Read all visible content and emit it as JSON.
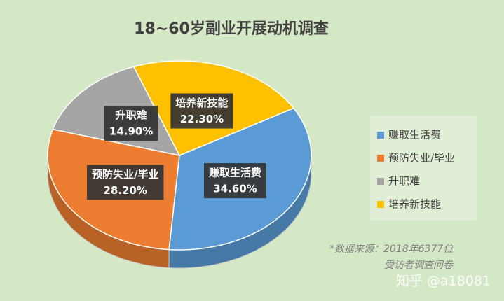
{
  "chart_data": {
    "type": "pie3d",
    "title": "18~60岁副业开展动机调查",
    "categories": [
      "赚取生活费",
      "预防失业/毕业",
      "升职难",
      "培养新技能"
    ],
    "series": [
      {
        "name": "占比",
        "values": [
          34.6,
          28.2,
          14.9,
          22.3
        ],
        "value_labels": [
          "34.60%",
          "28.20%",
          "14.90%",
          "22.30%"
        ]
      }
    ],
    "colors": [
      "#5b9bd5",
      "#ed7d31",
      "#a5a5a5",
      "#ffc000"
    ],
    "legend": "right",
    "source": [
      "*数据来源：2018年6377位",
      "受访者调查问卷"
    ],
    "watermark": "知乎 @a18081"
  }
}
